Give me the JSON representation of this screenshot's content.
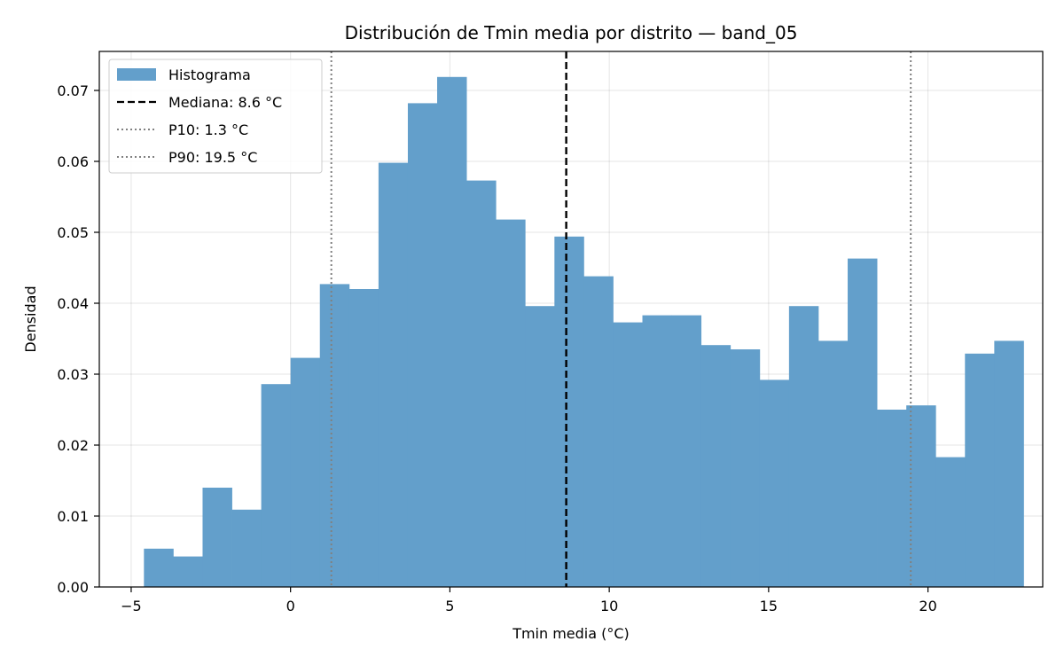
{
  "chart_data": {
    "type": "bar",
    "title": "Distribución de Tmin media por distrito — band_05",
    "xlabel": "Tmin media (°C)",
    "ylabel": "Densidad",
    "xlim": [
      -6.0,
      23.6
    ],
    "ylim": [
      0,
      0.0755
    ],
    "xticks": [
      -5,
      0,
      5,
      10,
      15,
      20
    ],
    "xtick_labels": [
      "−5",
      "0",
      "5",
      "10",
      "15",
      "20"
    ],
    "yticks": [
      0.0,
      0.01,
      0.02,
      0.03,
      0.04,
      0.05,
      0.06,
      0.07
    ],
    "ytick_labels": [
      "0.00",
      "0.01",
      "0.02",
      "0.03",
      "0.04",
      "0.05",
      "0.06",
      "0.07"
    ],
    "grid": true,
    "legend_position": "top-left",
    "bin_width": 0.92,
    "bin_edges_start": -4.6,
    "densities": [
      0.0054,
      0.0043,
      0.014,
      0.0109,
      0.0286,
      0.0323,
      0.0427,
      0.042,
      0.0598,
      0.0682,
      0.0719,
      0.0573,
      0.0518,
      0.0396,
      0.0494,
      0.0438,
      0.0373,
      0.0383,
      0.0383,
      0.0341,
      0.0335,
      0.0292,
      0.0396,
      0.0347,
      0.0463,
      0.025,
      0.0256,
      0.0183,
      0.0329,
      0.0347
    ],
    "bar_color": "#639fcb",
    "lines": [
      {
        "label": "Mediana: 8.6 °C",
        "x": 8.65,
        "style": "dashed",
        "color": "#000000"
      },
      {
        "label": "P10: 1.3 °C",
        "x": 1.28,
        "style": "dotted",
        "color": "#808080"
      },
      {
        "label": "P90: 19.5 °C",
        "x": 19.46,
        "style": "dotted",
        "color": "#808080"
      }
    ],
    "legend": {
      "histogram_label": "Histograma"
    }
  }
}
